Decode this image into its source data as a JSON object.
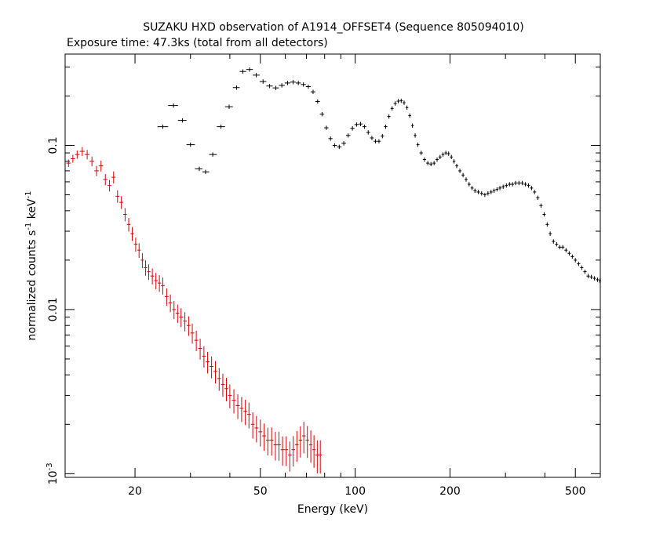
{
  "chart_data": {
    "type": "scatter",
    "title": "SUZAKU HXD observation of A1914_OFFSET4 (Sequence 805094010)",
    "subtitle": "Exposure time: 47.3ks (total from all detectors)",
    "xlabel": "Energy (keV)",
    "ylabel_prefix": "normalized counts s",
    "ylabel_sup1": "-1",
    "ylabel_mid": " keV",
    "ylabel_sup2": "-1",
    "x_scale": "log",
    "y_scale": "log",
    "xlim": [
      12,
      600
    ],
    "ylim": [
      0.00095,
      0.36
    ],
    "x_ticks": [
      {
        "value": 20,
        "label": "20"
      },
      {
        "value": 50,
        "label": "50"
      },
      {
        "value": 100,
        "label": "100"
      },
      {
        "value": 200,
        "label": "200"
      },
      {
        "value": 500,
        "label": "500"
      }
    ],
    "y_ticks": [
      {
        "value": 0.1,
        "label": "0.1"
      },
      {
        "value": 0.01,
        "label": "0.01"
      },
      {
        "value": 0.001,
        "label_base": "10",
        "label_exp": "-3"
      }
    ],
    "grid": false,
    "series": [
      {
        "color": "#000000",
        "points": [
          [
            24.5,
            0.13
          ],
          [
            26.5,
            0.175
          ],
          [
            28.3,
            0.142
          ],
          [
            30.0,
            0.101
          ],
          [
            32.0,
            0.072
          ],
          [
            33.5,
            0.069
          ],
          [
            35.3,
            0.088
          ],
          [
            37.5,
            0.13
          ],
          [
            39.8,
            0.172
          ],
          [
            42.0,
            0.225
          ],
          [
            44.0,
            0.282
          ],
          [
            46.2,
            0.29
          ],
          [
            48.5,
            0.268
          ],
          [
            51.0,
            0.245
          ],
          [
            53.5,
            0.23
          ],
          [
            56.0,
            0.224
          ],
          [
            58.5,
            0.232
          ],
          [
            61.0,
            0.24
          ],
          [
            63.5,
            0.243
          ],
          [
            66.0,
            0.24
          ],
          [
            68.5,
            0.235
          ],
          [
            71.0,
            0.228
          ],
          [
            73.5,
            0.212
          ],
          [
            76.0,
            0.185
          ],
          [
            78.5,
            0.155
          ],
          [
            81.0,
            0.128
          ],
          [
            83.5,
            0.11
          ],
          [
            86.0,
            0.1
          ],
          [
            89.0,
            0.098
          ],
          [
            92.0,
            0.103
          ],
          [
            95.0,
            0.115
          ],
          [
            98.0,
            0.127
          ],
          [
            101.0,
            0.134
          ],
          [
            104.0,
            0.135
          ],
          [
            107.0,
            0.13
          ],
          [
            110.0,
            0.12
          ],
          [
            113.0,
            0.111
          ],
          [
            116.0,
            0.106
          ],
          [
            119.0,
            0.106
          ],
          [
            122.0,
            0.114
          ],
          [
            125.0,
            0.13
          ],
          [
            128.0,
            0.15
          ],
          [
            131.0,
            0.168
          ],
          [
            134.0,
            0.18
          ],
          [
            137.0,
            0.186
          ],
          [
            140.0,
            0.187
          ],
          [
            143.0,
            0.182
          ],
          [
            146.0,
            0.17
          ],
          [
            149.0,
            0.152
          ],
          [
            152.0,
            0.132
          ],
          [
            155.0,
            0.115
          ],
          [
            158.0,
            0.101
          ],
          [
            162.0,
            0.09
          ],
          [
            166.0,
            0.082
          ],
          [
            170.0,
            0.078
          ],
          [
            174.0,
            0.077
          ],
          [
            178.0,
            0.078
          ],
          [
            182.0,
            0.082
          ],
          [
            186.0,
            0.085
          ],
          [
            190.0,
            0.088
          ],
          [
            194.0,
            0.09
          ],
          [
            198.0,
            0.089
          ],
          [
            202.0,
            0.085
          ],
          [
            206.0,
            0.08
          ],
          [
            210.0,
            0.075
          ],
          [
            215.0,
            0.07
          ],
          [
            220.0,
            0.066
          ],
          [
            225.0,
            0.062
          ],
          [
            230.0,
            0.058
          ],
          [
            235.0,
            0.055
          ],
          [
            240.0,
            0.053
          ],
          [
            246.0,
            0.052
          ],
          [
            252.0,
            0.051
          ],
          [
            258.0,
            0.05
          ],
          [
            264.0,
            0.051
          ],
          [
            270.0,
            0.052
          ],
          [
            276.0,
            0.053
          ],
          [
            282.0,
            0.054
          ],
          [
            288.0,
            0.055
          ],
          [
            295.0,
            0.056
          ],
          [
            302.0,
            0.057
          ],
          [
            309.0,
            0.058
          ],
          [
            316.0,
            0.058
          ],
          [
            323.0,
            0.059
          ],
          [
            331.0,
            0.059
          ],
          [
            339.0,
            0.059
          ],
          [
            347.0,
            0.058
          ],
          [
            355.0,
            0.057
          ],
          [
            363.0,
            0.055
          ],
          [
            371.0,
            0.052
          ],
          [
            380.0,
            0.048
          ],
          [
            389.0,
            0.043
          ],
          [
            398.0,
            0.038
          ],
          [
            407.0,
            0.033
          ],
          [
            416.0,
            0.029
          ],
          [
            426.0,
            0.026
          ],
          [
            436.0,
            0.025
          ],
          [
            446.0,
            0.024
          ],
          [
            456.0,
            0.024
          ],
          [
            467.0,
            0.023
          ],
          [
            478.0,
            0.022
          ],
          [
            489.0,
            0.021
          ],
          [
            500.0,
            0.02
          ],
          [
            512.0,
            0.019
          ],
          [
            524.0,
            0.018
          ],
          [
            536.0,
            0.017
          ],
          [
            549.0,
            0.016
          ],
          [
            562.0,
            0.0158
          ],
          [
            575.0,
            0.0155
          ],
          [
            588.0,
            0.0152
          ],
          [
            598.0,
            0.015
          ]
        ]
      },
      {
        "color": "#dd0000",
        "points": [
          [
            12.3,
            0.078
          ],
          [
            12.7,
            0.083
          ],
          [
            13.1,
            0.088
          ],
          [
            13.6,
            0.092
          ],
          [
            14.1,
            0.088
          ],
          [
            14.6,
            0.08
          ],
          [
            15.1,
            0.07
          ],
          [
            15.6,
            0.075
          ],
          [
            16.1,
            0.062
          ],
          [
            16.6,
            0.057
          ],
          [
            17.1,
            0.064
          ],
          [
            17.6,
            0.049
          ],
          [
            18.1,
            0.045
          ],
          [
            18.6,
            0.038
          ],
          [
            19.1,
            0.033
          ],
          [
            19.6,
            0.029
          ],
          [
            20.1,
            0.025
          ],
          [
            20.6,
            0.023
          ],
          [
            21.1,
            0.02
          ],
          [
            21.6,
            0.018
          ],
          [
            22.1,
            0.017
          ],
          [
            22.7,
            0.016
          ],
          [
            23.3,
            0.015
          ],
          [
            23.9,
            0.0145
          ],
          [
            24.5,
            0.014
          ],
          [
            25.2,
            0.012
          ],
          [
            25.9,
            0.011
          ],
          [
            26.6,
            0.01
          ],
          [
            27.3,
            0.0095
          ],
          [
            28.0,
            0.009
          ],
          [
            28.8,
            0.0085
          ],
          [
            29.6,
            0.008
          ],
          [
            30.4,
            0.0072
          ],
          [
            31.3,
            0.0065
          ],
          [
            32.2,
            0.0058
          ],
          [
            33.1,
            0.0052
          ],
          [
            34.0,
            0.0048
          ],
          [
            35.0,
            0.0045
          ],
          [
            36.0,
            0.0042
          ],
          [
            37.0,
            0.0038
          ],
          [
            38.0,
            0.0035
          ],
          [
            39.0,
            0.0033
          ],
          [
            40.0,
            0.003
          ],
          [
            41.2,
            0.0028
          ],
          [
            42.4,
            0.0026
          ],
          [
            43.6,
            0.0025
          ],
          [
            44.8,
            0.0024
          ],
          [
            46.0,
            0.0023
          ],
          [
            47.3,
            0.002
          ],
          [
            48.6,
            0.0019
          ],
          [
            50.0,
            0.0018
          ],
          [
            51.4,
            0.0017
          ],
          [
            52.8,
            0.0016
          ],
          [
            54.3,
            0.0016
          ],
          [
            55.8,
            0.0015
          ],
          [
            57.3,
            0.0015
          ],
          [
            58.8,
            0.0014
          ],
          [
            60.4,
            0.0014
          ],
          [
            62.0,
            0.0013
          ],
          [
            63.6,
            0.0014
          ],
          [
            65.3,
            0.0015
          ],
          [
            67.0,
            0.0016
          ],
          [
            68.7,
            0.0017
          ],
          [
            70.5,
            0.0016
          ],
          [
            72.3,
            0.0015
          ],
          [
            74.0,
            0.0014
          ],
          [
            75.8,
            0.0013
          ],
          [
            77.5,
            0.0013
          ]
        ]
      }
    ]
  }
}
